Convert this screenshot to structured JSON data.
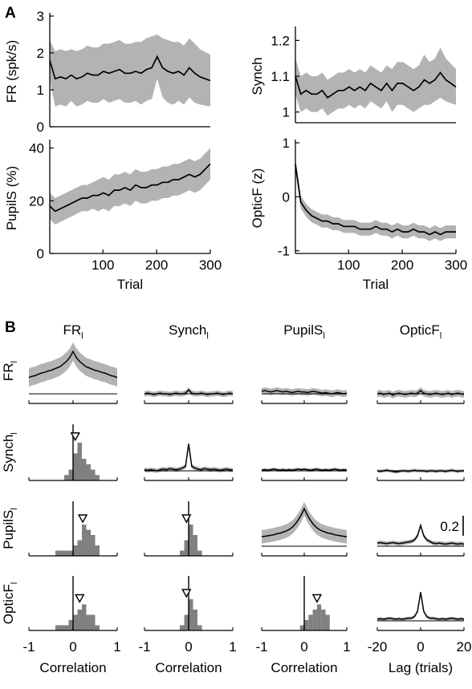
{
  "panel_labels": {
    "a": "A",
    "b": "B"
  },
  "colors": {
    "band": "#b3b3b3",
    "line": "#000000",
    "hist": "#808080"
  },
  "chart_data": [
    {
      "id": "FR",
      "type": "line",
      "ylabel": "FR (spk/s)",
      "xlim": [
        1,
        300
      ],
      "ylim": [
        0,
        3
      ],
      "yticks": [
        0,
        1,
        2,
        3
      ],
      "x_start": 1,
      "x_step": 10,
      "mean": [
        1.8,
        1.3,
        1.35,
        1.3,
        1.4,
        1.3,
        1.35,
        1.45,
        1.4,
        1.4,
        1.5,
        1.45,
        1.5,
        1.55,
        1.45,
        1.45,
        1.5,
        1.45,
        1.55,
        1.6,
        1.9,
        1.6,
        1.5,
        1.45,
        1.5,
        1.4,
        1.6,
        1.45,
        1.35,
        1.25
      ],
      "band": [
        0.55,
        0.75,
        0.75,
        0.75,
        0.7,
        0.75,
        0.75,
        0.75,
        0.75,
        0.75,
        0.75,
        0.8,
        0.8,
        0.8,
        0.8,
        0.8,
        0.8,
        0.85,
        0.85,
        0.85,
        0.6,
        0.8,
        0.85,
        0.85,
        0.8,
        0.8,
        0.8,
        0.8,
        0.75,
        0.7
      ]
    },
    {
      "id": "Synch",
      "type": "line",
      "ylabel": "Synch",
      "xlim": [
        1,
        300
      ],
      "ylim": [
        0.97,
        1.23
      ],
      "yticks": [
        1,
        1.1,
        1.2
      ],
      "x_start": 1,
      "x_step": 10,
      "mean": [
        1.1,
        1.05,
        1.06,
        1.05,
        1.05,
        1.06,
        1.04,
        1.05,
        1.06,
        1.06,
        1.07,
        1.06,
        1.07,
        1.06,
        1.08,
        1.07,
        1.06,
        1.08,
        1.06,
        1.08,
        1.08,
        1.07,
        1.06,
        1.07,
        1.09,
        1.08,
        1.09,
        1.11,
        1.09,
        1.07
      ],
      "band": [
        0.05,
        0.05,
        0.05,
        0.05,
        0.05,
        0.05,
        0.05,
        0.05,
        0.05,
        0.05,
        0.05,
        0.05,
        0.05,
        0.05,
        0.05,
        0.05,
        0.05,
        0.05,
        0.06,
        0.06,
        0.06,
        0.06,
        0.06,
        0.06,
        0.07,
        0.06,
        0.06,
        0.07,
        0.06,
        0.05
      ]
    },
    {
      "id": "PupilS",
      "type": "line",
      "ylabel": "PupilS (%)",
      "xlabel": "Trial",
      "xlim": [
        1,
        300
      ],
      "ylim": [
        0,
        42
      ],
      "yticks": [
        0,
        20,
        40
      ],
      "xticks": [
        100,
        200,
        300
      ],
      "x_start": 1,
      "x_step": 10,
      "mean": [
        18,
        16,
        17,
        18,
        19,
        20,
        21,
        21,
        22,
        22,
        23,
        22,
        24,
        24,
        25,
        24,
        26,
        25,
        25,
        26,
        26,
        27,
        27,
        28,
        28,
        29,
        30,
        29,
        30,
        34
      ],
      "band": [
        5,
        5,
        5,
        5,
        5,
        5,
        5,
        5,
        5,
        6,
        6,
        6,
        6,
        6,
        6,
        6,
        6,
        6,
        6,
        6,
        6,
        6,
        6,
        6,
        6,
        6,
        6,
        6,
        6,
        6
      ]
    },
    {
      "id": "OpticF",
      "type": "line",
      "ylabel": "OpticF (z)",
      "xlabel": "Trial",
      "xlim": [
        1,
        300
      ],
      "ylim": [
        -1.05,
        1
      ],
      "yticks": [
        -1,
        0,
        1
      ],
      "xticks": [
        100,
        200,
        300
      ],
      "x_start": 1,
      "x_step": 10,
      "mean": [
        0.6,
        -0.1,
        -0.25,
        -0.35,
        -0.4,
        -0.45,
        -0.45,
        -0.5,
        -0.5,
        -0.55,
        -0.55,
        -0.55,
        -0.6,
        -0.6,
        -0.6,
        -0.55,
        -0.6,
        -0.6,
        -0.65,
        -0.6,
        -0.65,
        -0.65,
        -0.6,
        -0.65,
        -0.65,
        -0.7,
        -0.65,
        -0.7,
        -0.65,
        -0.65
      ],
      "band": [
        0.12,
        0.12,
        0.12,
        0.12,
        0.12,
        0.12,
        0.12,
        0.12,
        0.12,
        0.12,
        0.12,
        0.12,
        0.12,
        0.12,
        0.12,
        0.12,
        0.12,
        0.12,
        0.12,
        0.12,
        0.12,
        0.12,
        0.12,
        0.12,
        0.12,
        0.12,
        0.12,
        0.12,
        0.12,
        0.12
      ]
    },
    {
      "id": "matrix",
      "type": "line",
      "columns": [
        {
          "base": "FR",
          "sub": "l"
        },
        {
          "base": "Synch",
          "sub": "l"
        },
        {
          "base": "PupilS",
          "sub": "l"
        },
        {
          "base": "OpticF",
          "sub": "l"
        }
      ],
      "rows": [
        {
          "base": "FR",
          "sub": "l"
        },
        {
          "base": "Synch",
          "sub": "l"
        },
        {
          "base": "PupilS",
          "sub": "l"
        },
        {
          "base": "OpticF",
          "sub": "l"
        }
      ],
      "corr_xlabel": "Correlation",
      "corr_xticks": [
        -1,
        0,
        1
      ],
      "corr_xlim": [
        -1,
        1
      ],
      "lag_xlabel": "Lag (trials)",
      "lag_xticks": [
        -20,
        0,
        20
      ],
      "lag_xlim": [
        -22,
        22
      ],
      "scale_bar_label": "0.2",
      "hist_bin_edges": [
        -0.5,
        -0.4,
        -0.3,
        -0.2,
        -0.1,
        0.0,
        0.1,
        0.2,
        0.3,
        0.4,
        0.5,
        0.6,
        0.7
      ],
      "histograms": [
        {
          "row": 1,
          "col": 0,
          "counts": [
            0,
            0,
            0,
            1,
            2,
            5,
            7,
            4,
            3,
            2,
            1,
            0
          ],
          "mean": 0.05
        },
        {
          "row": 2,
          "col": 0,
          "counts": [
            0,
            1,
            1,
            1,
            1,
            2,
            3,
            6,
            5,
            4,
            2,
            0
          ],
          "mean": 0.22
        },
        {
          "row": 3,
          "col": 0,
          "counts": [
            0,
            1,
            1,
            1,
            2,
            3,
            4,
            5,
            3,
            3,
            1,
            0
          ],
          "mean": 0.15
        },
        {
          "row": 2,
          "col": 1,
          "counts": [
            0,
            0,
            0,
            1,
            3,
            6,
            4,
            1,
            0,
            0,
            0,
            0
          ],
          "mean": -0.05
        },
        {
          "row": 3,
          "col": 1,
          "counts": [
            0,
            0,
            0,
            1,
            3,
            6,
            4,
            1,
            0,
            0,
            0,
            0
          ],
          "mean": -0.05
        },
        {
          "row": 3,
          "col": 2,
          "counts": [
            0,
            0,
            0,
            0,
            1,
            2,
            3,
            4,
            5,
            4,
            3,
            0
          ],
          "mean": 0.3
        }
      ],
      "cross_corr": [
        {
          "row": 0,
          "col": 0,
          "offset": 0.0,
          "mean": [
            0.25,
            0.27,
            0.28,
            0.3,
            0.32,
            0.33,
            0.35,
            0.36,
            0.38,
            0.4,
            0.42,
            0.46,
            0.5,
            0.56,
            0.65,
            0.56,
            0.5,
            0.46,
            0.42,
            0.4,
            0.38,
            0.36,
            0.35,
            0.33,
            0.32,
            0.3,
            0.28,
            0.27,
            0.25
          ],
          "band": 0.14
        },
        {
          "row": 0,
          "col": 1,
          "offset": 0.0,
          "mean": [
            0.0,
            0.01,
            0.0,
            -0.01,
            0.0,
            0.01,
            0.0,
            0.0,
            -0.01,
            0.0,
            0.01,
            0.0,
            0.0,
            0.01,
            0.06,
            0.01,
            0.0,
            0.0,
            0.01,
            0.0,
            -0.01,
            0.0,
            0.0,
            0.01,
            0.0,
            -0.01,
            0.0,
            0.01,
            0.0
          ],
          "band": 0.04
        },
        {
          "row": 0,
          "col": 2,
          "offset": 0.0,
          "mean": [
            0.04,
            0.05,
            0.04,
            0.03,
            0.04,
            0.05,
            0.04,
            0.03,
            0.04,
            0.03,
            0.02,
            0.03,
            0.04,
            0.03,
            0.03,
            0.02,
            0.03,
            0.04,
            0.03,
            0.02,
            0.01,
            0.02,
            0.01,
            0.0,
            0.01,
            0.02,
            0.01,
            0.0,
            0.01
          ],
          "band": 0.05
        },
        {
          "row": 0,
          "col": 3,
          "offset": 0.0,
          "mean": [
            0.0,
            0.01,
            -0.01,
            0.0,
            0.01,
            -0.02,
            0.0,
            0.01,
            0.0,
            -0.01,
            0.0,
            0.01,
            0.0,
            0.01,
            0.05,
            0.01,
            0.0,
            -0.01,
            0.0,
            0.01,
            0.0,
            -0.01,
            0.0,
            0.01,
            -0.01,
            0.0,
            0.01,
            0.0,
            -0.01
          ],
          "band": 0.05
        },
        {
          "row": 1,
          "col": 1,
          "offset": 0.0,
          "mean": [
            0.02,
            0.01,
            0.02,
            0.01,
            0.0,
            0.02,
            0.03,
            0.02,
            0.04,
            0.03,
            0.02,
            0.03,
            0.05,
            0.08,
            0.5,
            0.08,
            0.05,
            0.03,
            0.02,
            0.04,
            0.03,
            0.02,
            0.03,
            0.02,
            0.01,
            0.02,
            0.03,
            0.02,
            0.01
          ],
          "band": 0.04
        },
        {
          "row": 1,
          "col": 2,
          "offset": 0.0,
          "mean": [
            0.01,
            0.02,
            0.01,
            0.02,
            0.03,
            0.02,
            0.01,
            0.02,
            0.01,
            0.02,
            0.01,
            0.02,
            0.03,
            0.02,
            0.03,
            0.02,
            0.01,
            0.02,
            0.03,
            0.02,
            0.01,
            0.02,
            0.01,
            0.02,
            0.03,
            0.02,
            0.01,
            0.02,
            0.01
          ],
          "band": 0.03
        },
        {
          "row": 1,
          "col": 3,
          "offset": 0.0,
          "mean": [
            0.0,
            -0.01,
            0.0,
            0.01,
            0.0,
            -0.01,
            -0.02,
            -0.01,
            0.0,
            0.0,
            -0.01,
            0.0,
            0.01,
            0.0,
            0.0,
            0.0,
            -0.01,
            0.0,
            0.0,
            -0.01,
            0.0,
            0.0,
            -0.01,
            0.0,
            0.01,
            0.0,
            -0.01,
            0.0,
            0.0
          ],
          "band": 0.03
        },
        {
          "row": 2,
          "col": 2,
          "offset": 0.0,
          "mean": [
            0.18,
            0.19,
            0.2,
            0.21,
            0.22,
            0.24,
            0.25,
            0.27,
            0.29,
            0.32,
            0.36,
            0.42,
            0.5,
            0.6,
            0.72,
            0.6,
            0.5,
            0.42,
            0.36,
            0.32,
            0.29,
            0.27,
            0.25,
            0.24,
            0.22,
            0.21,
            0.2,
            0.19,
            0.18
          ],
          "band": 0.13
        },
        {
          "row": 2,
          "col": 3,
          "offset": 0.0,
          "mean": [
            0.06,
            0.07,
            0.06,
            0.05,
            0.06,
            0.07,
            0.06,
            0.05,
            0.06,
            0.07,
            0.08,
            0.09,
            0.12,
            0.2,
            0.4,
            0.2,
            0.12,
            0.09,
            0.06,
            0.05,
            0.06,
            0.05,
            0.04,
            0.05,
            0.06,
            0.05,
            0.04,
            0.05,
            0.04
          ],
          "band": 0.04
        },
        {
          "row": 3,
          "col": 3,
          "offset": 0.0,
          "mean": [
            0.03,
            0.04,
            0.03,
            0.04,
            0.05,
            0.04,
            0.03,
            0.04,
            0.03,
            0.04,
            0.05,
            0.05,
            0.08,
            0.18,
            0.55,
            0.18,
            0.08,
            0.05,
            0.05,
            0.04,
            0.03,
            0.04,
            0.03,
            0.04,
            0.05,
            0.04,
            0.03,
            0.04,
            0.03
          ],
          "band": 0.03
        }
      ]
    }
  ]
}
